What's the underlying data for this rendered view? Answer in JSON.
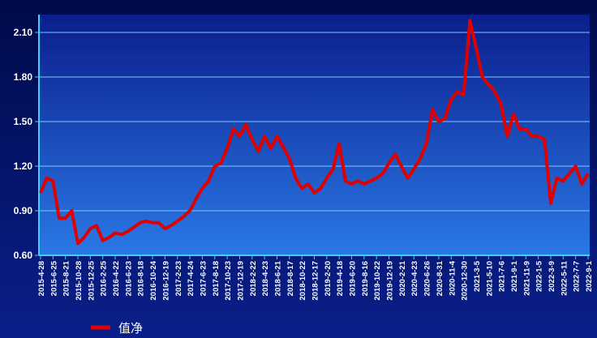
{
  "chart_data": {
    "type": "line",
    "categories": [
      "2015-4-28",
      null,
      "2015-6-25",
      null,
      "2015-8-21",
      null,
      "2015-10-28",
      null,
      "2015-12-25",
      null,
      "2016-2-25",
      null,
      "2016-4-22",
      null,
      "2016-6-23",
      null,
      "2016-8-18",
      null,
      "2016-10-24",
      null,
      "2016-12-19",
      null,
      "2017-2-23",
      null,
      "2017-4-24",
      null,
      "2017-6-23",
      null,
      "2017-8-18",
      null,
      "2017-10-23",
      null,
      "2017-12-19",
      null,
      "2018-2-22",
      null,
      "2018-4-23",
      null,
      "2018-6-21",
      null,
      "2018-8-17",
      null,
      "2018-10-22",
      null,
      "2018-12-17",
      null,
      "2019-2-20",
      null,
      "2019-4-18",
      null,
      "2019-6-20",
      null,
      "2019-8-16",
      null,
      "2019-10-22",
      null,
      "2019-12-19",
      null,
      "2020-2-21",
      null,
      "2020-4-23",
      null,
      "2020-6-26",
      null,
      "2020-8-31",
      null,
      "2020-11-4",
      null,
      "2020-12-30",
      null,
      "2021-3-5",
      null,
      "2021-5-10",
      null,
      "2021-7-6",
      null,
      "2021-9-1",
      null,
      "2021-11-9",
      null,
      "2022-1-5",
      null,
      "2022-3-9",
      null,
      "2022-5-11",
      null,
      "2022-7-7",
      null,
      "2022-9-1"
    ],
    "series": [
      {
        "name": "值净",
        "color": "#e00000",
        "values": [
          1.02,
          1.12,
          1.1,
          0.85,
          0.85,
          0.9,
          0.68,
          0.72,
          0.78,
          0.8,
          0.7,
          0.72,
          0.75,
          0.74,
          0.76,
          0.79,
          0.82,
          0.83,
          0.82,
          0.82,
          0.78,
          0.8,
          0.83,
          0.86,
          0.9,
          0.98,
          1.05,
          1.1,
          1.2,
          1.22,
          1.32,
          1.45,
          1.4,
          1.48,
          1.38,
          1.3,
          1.4,
          1.32,
          1.4,
          1.33,
          1.25,
          1.12,
          1.05,
          1.08,
          1.02,
          1.05,
          1.12,
          1.18,
          1.35,
          1.1,
          1.08,
          1.1,
          1.08,
          1.1,
          1.12,
          1.15,
          1.22,
          1.28,
          1.2,
          1.12,
          1.18,
          1.25,
          1.35,
          1.58,
          1.5,
          1.52,
          1.65,
          1.7,
          1.68,
          2.18,
          2.0,
          1.8,
          1.75,
          1.7,
          1.62,
          1.4,
          1.55,
          1.45,
          1.45,
          1.4,
          1.4,
          1.38,
          0.95,
          1.12,
          1.1,
          1.15,
          1.2,
          1.08,
          1.15
        ]
      }
    ],
    "ylim": [
      0.6,
      2.22
    ],
    "yticks": [
      {
        "value": 0.6,
        "label": "0.60"
      },
      {
        "value": 0.9,
        "label": "0.90"
      },
      {
        "value": 1.2,
        "label": "1.20"
      },
      {
        "value": 1.5,
        "label": "1.50"
      },
      {
        "value": 1.8,
        "label": "1.80"
      },
      {
        "value": 2.1,
        "label": "2.10"
      }
    ],
    "grid": true
  }
}
